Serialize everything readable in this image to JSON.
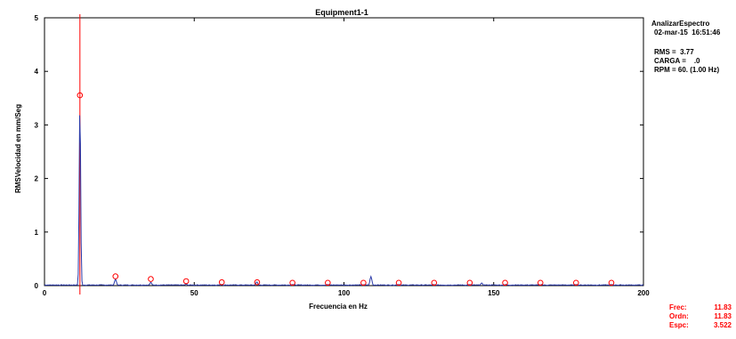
{
  "chart_data": {
    "type": "line",
    "title": "Equipment1-1",
    "xlabel": "Frecuencia en Hz",
    "ylabel": "RMSVelocidad en  mm/Seg",
    "xlim": [
      0,
      200
    ],
    "ylim": [
      0,
      5
    ],
    "xticks": [
      "0",
      "50",
      "100",
      "150",
      "200"
    ],
    "yticks": [
      "0",
      "1",
      "2",
      "3",
      "4",
      "5"
    ],
    "grid": false,
    "series": [
      {
        "color": "#2b3aa8",
        "peaks": [
          {
            "x": 11.83,
            "y": 3.35
          },
          {
            "x": 23.7,
            "y": 0.12
          },
          {
            "x": 35.5,
            "y": 0.06
          },
          {
            "x": 47.3,
            "y": 0.03
          },
          {
            "x": 59.2,
            "y": 0.02
          },
          {
            "x": 70.9,
            "y": 0.07
          },
          {
            "x": 82.8,
            "y": 0.02
          },
          {
            "x": 94.6,
            "y": 0.02
          },
          {
            "x": 109.0,
            "y": 0.17
          },
          {
            "x": 118.3,
            "y": 0.02
          },
          {
            "x": 130.0,
            "y": 0.02
          },
          {
            "x": 142.0,
            "y": 0.02
          },
          {
            "x": 146.0,
            "y": 0.05
          },
          {
            "x": 154.0,
            "y": 0.02
          },
          {
            "x": 166.0,
            "y": 0.02
          },
          {
            "x": 177.5,
            "y": 0.02
          },
          {
            "x": 189.3,
            "y": 0.02
          }
        ]
      }
    ],
    "harmonic_markers": {
      "color": "#ff0000",
      "points": [
        {
          "x": 11.83,
          "y": 3.52
        },
        {
          "x": 23.7,
          "y": 0.14
        },
        {
          "x": 35.5,
          "y": 0.09
        },
        {
          "x": 47.3,
          "y": 0.05
        },
        {
          "x": 59.2,
          "y": 0.03
        },
        {
          "x": 71.0,
          "y": 0.03
        },
        {
          "x": 82.8,
          "y": 0.02
        },
        {
          "x": 94.6,
          "y": 0.02
        },
        {
          "x": 106.5,
          "y": 0.02
        },
        {
          "x": 118.3,
          "y": 0.02
        },
        {
          "x": 130.1,
          "y": 0.02
        },
        {
          "x": 142.0,
          "y": 0.02
        },
        {
          "x": 153.8,
          "y": 0.02
        },
        {
          "x": 165.6,
          "y": 0.02
        },
        {
          "x": 177.5,
          "y": 0.02
        },
        {
          "x": 189.3,
          "y": 0.02
        }
      ]
    },
    "cursor_x": 11.83
  },
  "side_info": {
    "app": "AnalizarEspectro",
    "datetime": "02-mar-15  16:51:46",
    "rms": "RMS =  3.77",
    "carga": "CARGA =    .0",
    "rpm": "RPM = 60. (1.00 Hz)"
  },
  "cursor_readout": {
    "frec_label": "Frec:",
    "frec_value": "11.83",
    "ordn_label": "Ordn:",
    "ordn_value": "11.83",
    "espc_label": "Espc:",
    "espc_value": "3.522"
  },
  "colors": {
    "axis": "#000000",
    "trace": "#2b3aa8",
    "marker": "#ff0000",
    "cursor": "#ff0000"
  }
}
